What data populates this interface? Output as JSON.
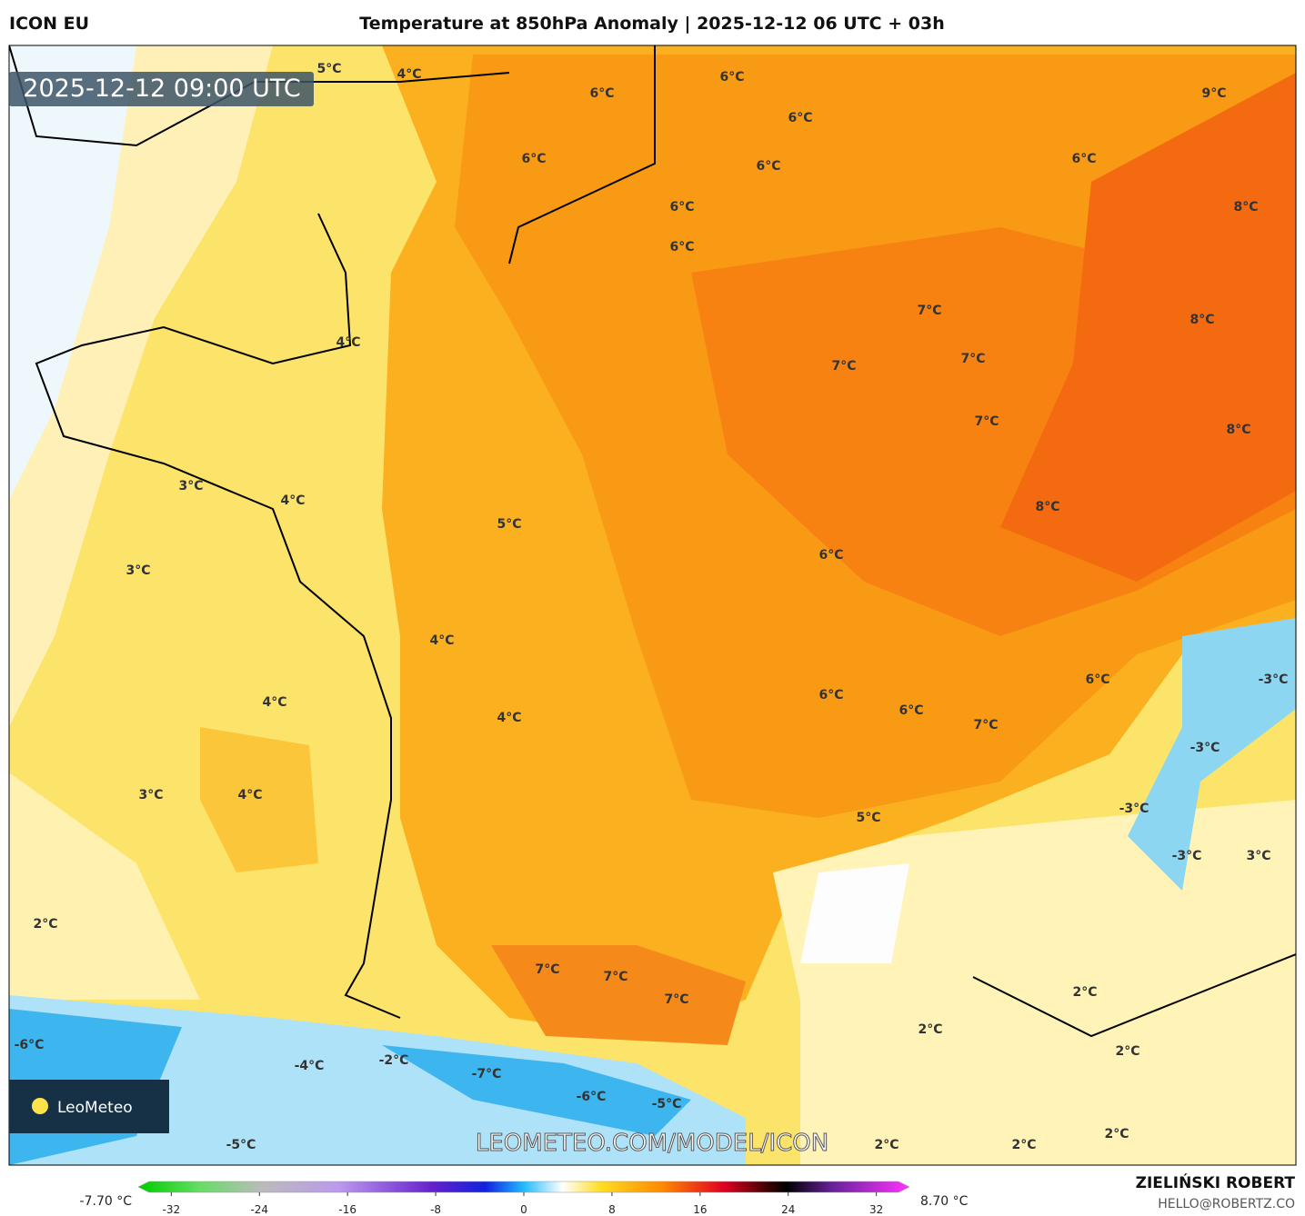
{
  "header": {
    "model": "ICON EU",
    "title": "Temperature at 850hPa Anomaly | 2025-12-12 06 UTC + 03h"
  },
  "map": {
    "timestamp": "2025-12-12 09:00 UTC",
    "labels": [
      "5°C",
      "4°C",
      "6°C",
      "6°C",
      "6°C",
      "6°C",
      "9°C",
      "6°C",
      "6°C",
      "6°C",
      "6°C",
      "8°C",
      "7°C",
      "8°C",
      "4°C",
      "7°C",
      "7°C",
      "7°C",
      "8°C",
      "3°C",
      "4°C",
      "8°C",
      "5°C",
      "6°C",
      "3°C",
      "4°C",
      "6°C",
      "-3°C",
      "4°C",
      "4°C",
      "6°C",
      "6°C",
      "7°C",
      "-3°C",
      "3°C",
      "4°C",
      "5°C",
      "-3°C",
      "-3°C",
      "3°C",
      "2°C",
      "7°C",
      "7°C",
      "7°C",
      "2°C",
      "2°C",
      "-6°C",
      "2°C",
      "-4°C",
      "-2°C",
      "-7°C",
      "-6°C",
      "-5°C",
      "-5°C",
      "2°C",
      "2°C",
      "2°C"
    ],
    "watermark": "LEOMETEO.COM/MODEL/ICON",
    "logo": "LeoMeteo",
    "colorbar": {
      "min_label": "-7.70 °C",
      "max_label": "8.70 °C",
      "lim": [
        -35,
        35
      ],
      "ticks": [
        -32,
        -24,
        -16,
        -8,
        0,
        8,
        16,
        24,
        32
      ]
    }
  },
  "footer": {
    "author": "ZIELIŃSKI ROBERT",
    "contact": "HELLO@ROBERTZ.CO"
  }
}
